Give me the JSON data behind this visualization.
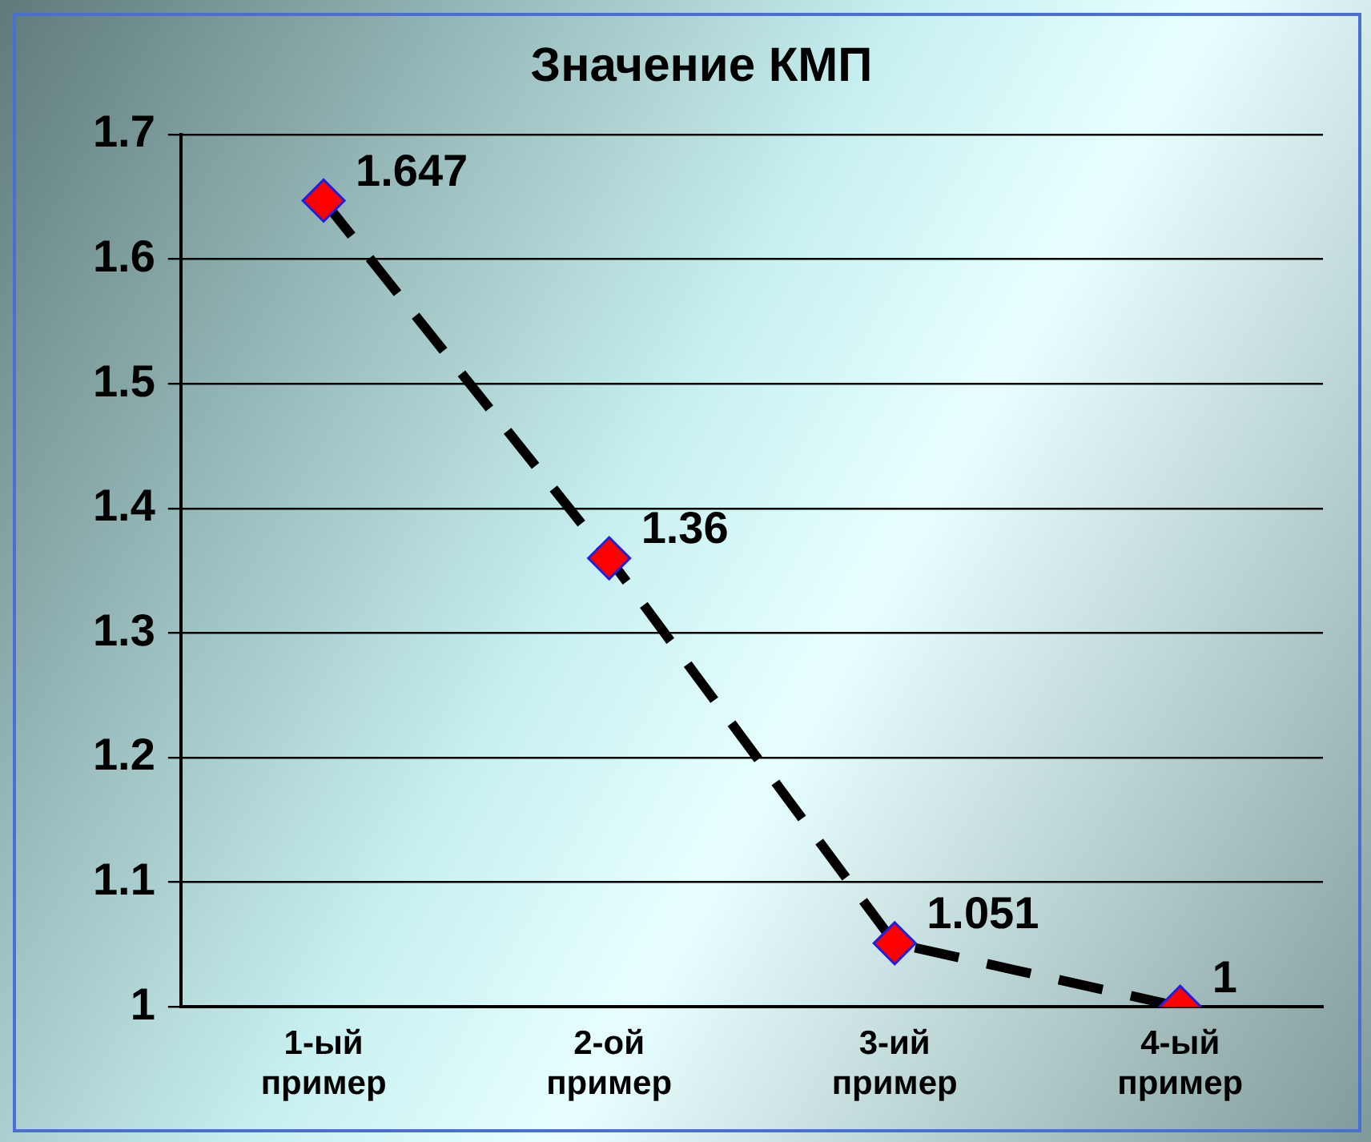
{
  "chart_data": {
    "type": "line",
    "title": "Значение КМП",
    "categories": [
      "1-ый пример",
      "2-ой пример",
      "3-ий пример",
      "4-ый пример"
    ],
    "series": [
      {
        "color": "#ff0000",
        "values": [
          1.647,
          1.36,
          1.051,
          1
        ]
      }
    ],
    "ylim": [
      1,
      1.7
    ],
    "yticks": [
      1,
      1.1,
      1.2,
      1.3,
      1.4,
      1.5,
      1.6,
      1.7
    ],
    "grid": "y",
    "legend": false,
    "marker": "diamond",
    "line_style": "dashed",
    "data_labels": true
  }
}
